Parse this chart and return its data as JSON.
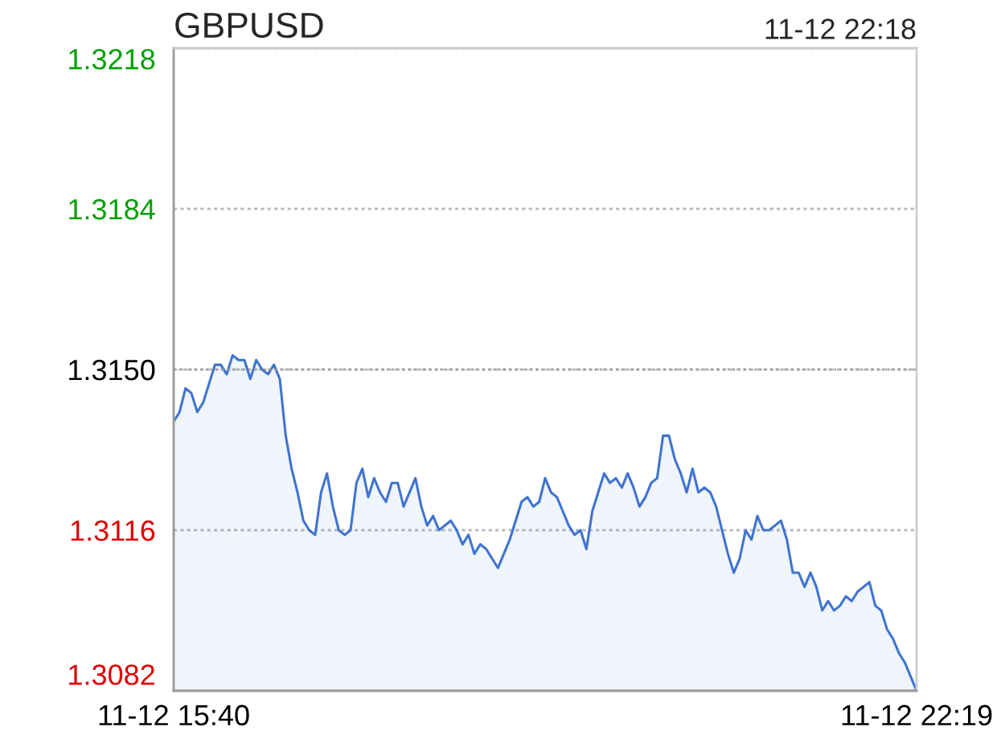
{
  "chart_data": {
    "type": "area",
    "title": "GBPUSD",
    "annotations": [
      "11-12 22:18"
    ],
    "categories": [
      "11-12 15:40",
      null,
      null,
      null,
      null,
      null,
      null,
      null,
      null,
      null,
      null,
      null,
      null,
      null,
      null,
      null,
      null,
      null,
      null,
      null,
      null,
      null,
      null,
      null,
      null,
      null,
      null,
      null,
      null,
      null,
      null,
      null,
      null,
      null,
      null,
      null,
      null,
      null,
      null,
      null,
      null,
      null,
      null,
      null,
      null,
      null,
      null,
      null,
      null,
      null,
      null,
      null,
      null,
      null,
      null,
      null,
      null,
      null,
      null,
      null,
      null,
      null,
      null,
      null,
      null,
      null,
      null,
      null,
      null,
      null,
      null,
      null,
      null,
      null,
      null,
      null,
      null,
      null,
      null,
      null,
      null,
      null,
      null,
      null,
      null,
      null,
      null,
      null,
      null,
      null,
      null,
      null,
      null,
      null,
      null,
      null,
      null,
      null,
      null,
      null,
      null,
      null,
      null,
      null,
      null,
      null,
      null,
      null,
      null,
      null,
      null,
      null,
      null,
      null,
      null,
      null,
      null,
      null,
      null,
      null,
      null,
      null,
      null,
      null,
      null,
      null,
      "11-12 22:19"
    ],
    "ylim": [
      1.3082,
      1.3218
    ],
    "yticks": [
      {
        "value": 1.3082,
        "label": "1.3082"
      },
      {
        "value": 1.3116,
        "label": "1.3116"
      },
      {
        "value": 1.315,
        "label": "1.3150"
      },
      {
        "value": 1.3184,
        "label": "1.3184"
      },
      {
        "value": 1.3218,
        "label": "1.3218"
      }
    ],
    "grid": "y",
    "ref_lines": [
      {
        "axis": "y",
        "value": 1.315,
        "color": "#999999",
        "line_style": "dotted"
      }
    ],
    "series": [
      {
        "color": "#3f74cf",
        "values": [
          1.3139,
          1.3141,
          1.3146,
          1.3145,
          1.3141,
          1.3143,
          1.3147,
          1.3151,
          1.3151,
          1.3149,
          1.3153,
          1.3152,
          1.3152,
          1.3148,
          1.3152,
          1.315,
          1.3149,
          1.3151,
          1.3148,
          1.3136,
          1.3129,
          1.3124,
          1.3118,
          1.3116,
          1.3115,
          1.3124,
          1.3128,
          1.3121,
          1.3116,
          1.3115,
          1.3116,
          1.3126,
          1.3129,
          1.3123,
          1.3127,
          1.3124,
          1.3122,
          1.3126,
          1.3126,
          1.3121,
          1.3124,
          1.3127,
          1.3121,
          1.3117,
          1.3119,
          1.3116,
          1.3117,
          1.3118,
          1.3116,
          1.3113,
          1.3115,
          1.3111,
          1.3113,
          1.3112,
          1.311,
          1.3108,
          1.3111,
          1.3114,
          1.3118,
          1.3122,
          1.3123,
          1.3121,
          1.3122,
          1.3127,
          1.3124,
          1.3123,
          1.312,
          1.3117,
          1.3115,
          1.3116,
          1.3112,
          1.312,
          1.3124,
          1.3128,
          1.3126,
          1.3127,
          1.3125,
          1.3128,
          1.3125,
          1.3121,
          1.3123,
          1.3126,
          1.3127,
          1.3136,
          1.3136,
          1.3131,
          1.3128,
          1.3124,
          1.3129,
          1.3124,
          1.3125,
          1.3124,
          1.3121,
          1.3116,
          1.3111,
          1.3107,
          1.311,
          1.3116,
          1.3114,
          1.3119,
          1.3116,
          1.3116,
          1.3117,
          1.3118,
          1.3114,
          1.3107,
          1.3107,
          1.3104,
          1.3107,
          1.3104,
          1.3099,
          1.3101,
          1.3099,
          1.31,
          1.3102,
          1.3101,
          1.3103,
          1.3104,
          1.3105,
          1.31,
          1.3099,
          1.3095,
          1.3093,
          1.309,
          1.3088,
          1.3085,
          1.3082
        ]
      }
    ]
  }
}
